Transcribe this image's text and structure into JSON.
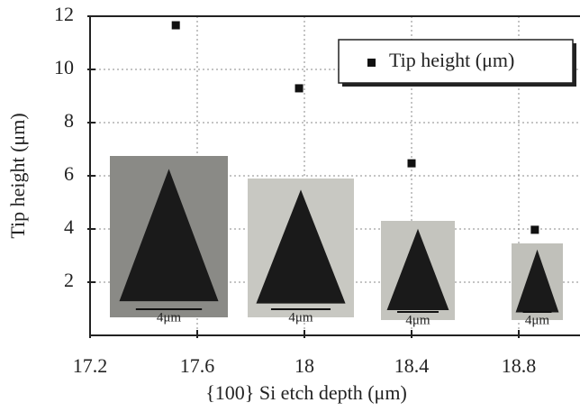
{
  "chart_data": {
    "type": "scatter",
    "x_label": "{100} Si etch depth (μm)",
    "y_label": "Tip height (μm)",
    "series": [
      {
        "name": "Tip height (μm)",
        "color": "#111111",
        "x": [
          17.52,
          17.98,
          18.4,
          18.86
        ],
        "values": [
          11.66,
          9.29,
          6.47,
          3.97
        ]
      }
    ],
    "xlim": [
      17.2,
      19.0
    ],
    "ylim": [
      0,
      12
    ],
    "xticks": [
      17.2,
      17.6,
      18,
      18.4,
      18.8
    ],
    "yticks": [
      2,
      4,
      6,
      8,
      10,
      12
    ],
    "grid": true,
    "legend": "upper right",
    "insets": [
      {
        "label": "4μm"
      },
      {
        "label": "4μm"
      },
      {
        "label": "4μm"
      },
      {
        "label": "4μm"
      }
    ]
  }
}
